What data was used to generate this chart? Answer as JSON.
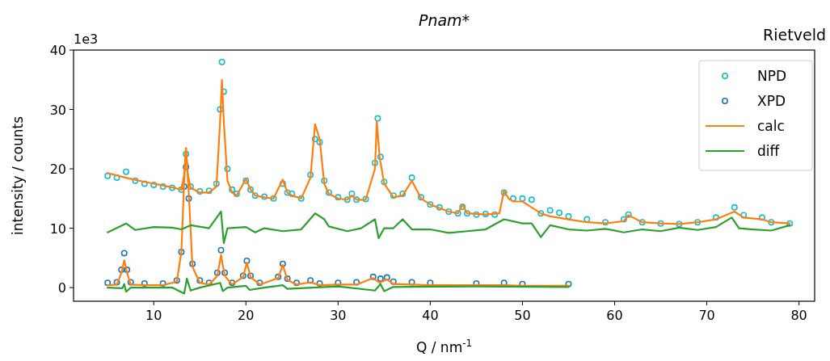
{
  "chart_data": {
    "type": "scatter",
    "title": "Pnam*",
    "xlabel": "Q / nm$^{-1}$",
    "ylabel": "intensity / counts",
    "annotations": [
      "1e3",
      "Rietveld"
    ],
    "xlim": [
      1.3,
      81.7
    ],
    "ylim": [
      -2.3,
      40
    ],
    "xticks": [
      10,
      20,
      30,
      40,
      50,
      60,
      70,
      80
    ],
    "yticks": [
      0,
      10,
      20,
      30,
      40
    ],
    "legend": "top right",
    "marker": "circle",
    "series": [
      {
        "name": "NPD",
        "color": "#17becf",
        "x": [
          5,
          6,
          7,
          8,
          9,
          10,
          11,
          12,
          13,
          13.5,
          14,
          15,
          16,
          16.8,
          17.2,
          17.4,
          17.6,
          18,
          18.5,
          19,
          20,
          20.5,
          21,
          22,
          23,
          24,
          24.5,
          25,
          26,
          27,
          27.5,
          28,
          28.5,
          29,
          30,
          31,
          31.5,
          32,
          33,
          34,
          34.3,
          34.6,
          35,
          36,
          37,
          38,
          39,
          40,
          41,
          42,
          43,
          43.5,
          44,
          45,
          46,
          47,
          48,
          49,
          50,
          51,
          52,
          53,
          54,
          55,
          57,
          59,
          61,
          61.5,
          63,
          65,
          67,
          69,
          71,
          73,
          74,
          76,
          77,
          79
        ],
        "values": [
          18.8,
          18.5,
          19.5,
          18,
          17.5,
          17.3,
          17,
          16.8,
          16.5,
          22.5,
          17,
          16.2,
          16.3,
          17.5,
          30,
          38,
          33,
          20,
          16.5,
          15.8,
          18,
          16.5,
          15.5,
          15.3,
          15,
          17.5,
          16,
          15.8,
          15,
          19,
          25,
          24.5,
          18,
          16,
          15.2,
          14.8,
          15.8,
          14.8,
          14.9,
          21,
          28.5,
          22,
          17.8,
          15.5,
          15.8,
          18.5,
          15.2,
          14,
          13.5,
          12.8,
          12.5,
          13.6,
          12.5,
          12.3,
          12.4,
          12.3,
          16,
          15,
          15,
          14.8,
          12.5,
          13,
          12.6,
          12,
          11.5,
          11,
          11.5,
          12.3,
          11,
          10.8,
          10.7,
          11,
          11.8,
          13.5,
          12.2,
          11.8,
          11,
          10.8
        ]
      },
      {
        "name": "XPD",
        "color": "#1f77b4",
        "x": [
          5,
          6,
          6.5,
          6.8,
          7.1,
          7.5,
          9,
          11,
          12.5,
          13,
          13.3,
          13.5,
          13.8,
          14.2,
          15,
          16,
          16.9,
          17.3,
          17.7,
          18.5,
          19.7,
          20.1,
          20.5,
          21.5,
          23.5,
          24,
          24.5,
          25.5,
          27,
          28,
          30,
          32,
          33.8,
          34.6,
          35.3,
          36,
          38,
          40,
          45,
          48,
          50,
          55
        ],
        "values": [
          0.8,
          0.9,
          3,
          5.8,
          3,
          0.9,
          0.7,
          0.7,
          1.2,
          6,
          17,
          20.3,
          15,
          4,
          1.2,
          0.8,
          2.5,
          6.3,
          2.5,
          0.8,
          2,
          4.5,
          2,
          0.8,
          1.8,
          4,
          1.5,
          0.8,
          1.2,
          0.7,
          0.8,
          0.9,
          1.8,
          1.5,
          1.7,
          1,
          0.9,
          0.8,
          0.7,
          0.8,
          0.6,
          0.6
        ]
      },
      {
        "name": "calc",
        "type": "line",
        "marker": "none",
        "color": "#ff7f0e",
        "x": [
          5,
          7,
          9,
          11,
          13,
          13.3,
          13.5,
          13.7,
          14,
          15,
          16,
          16.8,
          17.2,
          17.4,
          17.6,
          18,
          18.5,
          19,
          20,
          20.5,
          21,
          22,
          23,
          24,
          24.5,
          25,
          26,
          27,
          27.5,
          28,
          28.5,
          29,
          30,
          31,
          31.5,
          32,
          33,
          34,
          34.2,
          34.5,
          35,
          36,
          37,
          38,
          39,
          40,
          42,
          43,
          43.5,
          44,
          46,
          47.5,
          48,
          48.5,
          49,
          50,
          51,
          52,
          53,
          55,
          57,
          59,
          61,
          61.5,
          63,
          65,
          67,
          69,
          71,
          73,
          74,
          76,
          77,
          79
        ],
        "values": [
          19.3,
          18.5,
          17.8,
          17.2,
          16.5,
          19,
          23.5,
          19,
          16.8,
          16,
          16,
          17,
          28,
          35,
          28,
          18,
          16,
          15.5,
          18.3,
          16.5,
          15.5,
          15.2,
          15,
          18.2,
          16,
          15.5,
          15,
          18.5,
          27.5,
          25,
          17.5,
          15.8,
          15,
          14.8,
          15.5,
          14.8,
          14.8,
          20,
          28,
          22,
          17.5,
          15.2,
          15.5,
          18,
          15,
          14,
          12.8,
          12.5,
          14,
          12.5,
          12.3,
          12.5,
          16.3,
          15,
          14.5,
          14.5,
          13.5,
          12.5,
          12,
          11.5,
          11,
          10.8,
          11.2,
          12.2,
          11,
          10.8,
          10.7,
          11,
          11.5,
          12.8,
          11.8,
          11.5,
          11,
          10.8
        ]
      },
      {
        "type": "line",
        "marker": "none",
        "color": "#ff7f0e",
        "x": [
          5,
          6,
          6.5,
          6.8,
          7.1,
          7.5,
          9,
          11,
          12.5,
          13,
          13.3,
          13.5,
          13.8,
          14.2,
          15,
          16,
          16.9,
          17.3,
          17.7,
          18.5,
          19.7,
          20.1,
          20.5,
          21.5,
          23.5,
          24,
          24.5,
          25.5,
          27,
          28,
          30,
          32,
          33.8,
          34.5,
          35.3,
          36,
          38,
          40,
          45,
          48,
          50,
          55
        ],
        "values": [
          0.4,
          0.5,
          2.5,
          4.6,
          2.5,
          0.5,
          0.4,
          0.4,
          1,
          6,
          18,
          23.5,
          16,
          3.5,
          0.8,
          0.5,
          2,
          5.5,
          2,
          0.5,
          1.8,
          4.2,
          1.8,
          0.5,
          1.6,
          3.8,
          1.3,
          0.5,
          0.9,
          0.4,
          0.5,
          0.5,
          1.6,
          0.8,
          1.4,
          0.6,
          0.5,
          0.4,
          0.4,
          0.4,
          0.3,
          0.3
        ]
      },
      {
        "name": "diff",
        "type": "line",
        "marker": "none",
        "color": "#2ca02c",
        "x": [
          5,
          7,
          8,
          10,
          12,
          13,
          14,
          16,
          17.3,
          17.6,
          18,
          20,
          21,
          22,
          24,
          26,
          27.5,
          28.5,
          29,
          31,
          32.5,
          34,
          34.4,
          35,
          36,
          37,
          38,
          40,
          42,
          44,
          46,
          48,
          50,
          51,
          52,
          53,
          55,
          57,
          59,
          61,
          63,
          65,
          67,
          69,
          71,
          72.7,
          73.5,
          75,
          77,
          79
        ],
        "values": [
          9.3,
          10.8,
          9.7,
          10.2,
          10.1,
          9.8,
          10.5,
          10,
          12.8,
          7.5,
          10,
          10.2,
          9.3,
          10,
          9.5,
          9.8,
          12.5,
          11.5,
          10.3,
          9.5,
          10,
          11.5,
          8.3,
          10,
          10,
          11.5,
          9.8,
          9.8,
          9.2,
          9.5,
          9.8,
          11.5,
          10.8,
          10.8,
          8.5,
          10.5,
          9.8,
          9.6,
          9.9,
          9.3,
          9.8,
          9.5,
          10.1,
          9.7,
          10.2,
          11.8,
          10,
          9.8,
          9.6,
          10.5
        ]
      },
      {
        "type": "line",
        "marker": "none",
        "color": "#2ca02c",
        "x": [
          5,
          6.6,
          6.8,
          7,
          7.5,
          12,
          13.3,
          13.6,
          14,
          15,
          17.2,
          17.5,
          18,
          20,
          20.4,
          22,
          24,
          24.5,
          30,
          34,
          34.6,
          35,
          36,
          45,
          55
        ],
        "values": [
          0,
          -0.1,
          0.6,
          -0.7,
          0,
          0,
          -1,
          1.5,
          -0.5,
          0,
          0.8,
          -0.6,
          0,
          0.3,
          -0.4,
          0,
          0.4,
          -0.2,
          0.2,
          -0.5,
          0.6,
          -0.6,
          0.1,
          0.2,
          0.1
        ]
      }
    ]
  }
}
